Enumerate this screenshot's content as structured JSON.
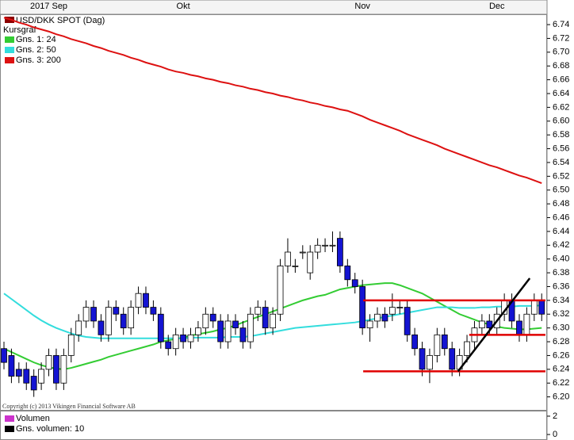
{
  "chart_data": [
    {
      "type": "candlestick",
      "title": "USD/DKK SPOT (Dag)",
      "color": "#8b0000",
      "subtitle": "Kursgraf",
      "footnote": "Copyright (c) 2013 Vikingen Financial Software AB",
      "categories": [
        null,
        null,
        null,
        null,
        null,
        null,
        "2017 Sep",
        null,
        null,
        null,
        null,
        null,
        null,
        null,
        null,
        null,
        null,
        null,
        null,
        null,
        null,
        null,
        null,
        null,
        "Okt",
        null,
        null,
        null,
        null,
        null,
        null,
        null,
        null,
        null,
        null,
        null,
        null,
        null,
        null,
        null,
        null,
        null,
        null,
        null,
        null,
        null,
        null,
        null,
        "Nov",
        null,
        null,
        null,
        null,
        null,
        null,
        null,
        null,
        null,
        null,
        null,
        null,
        null,
        null,
        null,
        null,
        null,
        "Dec",
        null,
        null,
        null,
        null,
        null,
        null
      ],
      "open": [
        6.27,
        6.26,
        6.24,
        6.24,
        6.23,
        6.22,
        6.24,
        6.26,
        6.22,
        6.26,
        6.29,
        6.31,
        6.33,
        6.31,
        6.29,
        6.33,
        6.32,
        6.3,
        6.33,
        6.35,
        6.33,
        6.32,
        6.28,
        6.27,
        6.29,
        6.28,
        6.29,
        6.3,
        6.32,
        6.31,
        6.28,
        6.31,
        6.3,
        6.28,
        6.32,
        6.33,
        6.3,
        6.32,
        6.39,
        6.39,
        6.41,
        6.38,
        6.41,
        6.42,
        6.42,
        6.43,
        6.39,
        6.37,
        6.36,
        6.3,
        6.31,
        6.32,
        6.32,
        6.33,
        6.33,
        6.29,
        6.27,
        6.24,
        6.26,
        6.29,
        6.27,
        6.24,
        6.26,
        6.28,
        6.3,
        6.31,
        6.3,
        6.32,
        6.34,
        6.31,
        6.29,
        6.32,
        6.34
      ],
      "high": [
        6.28,
        6.27,
        6.25,
        6.25,
        6.24,
        6.25,
        6.27,
        6.27,
        6.27,
        6.3,
        6.32,
        6.34,
        6.34,
        6.32,
        6.34,
        6.34,
        6.33,
        6.34,
        6.36,
        6.36,
        6.34,
        6.33,
        6.29,
        6.3,
        6.3,
        6.3,
        6.31,
        6.33,
        6.33,
        6.32,
        6.32,
        6.32,
        6.31,
        6.33,
        6.34,
        6.34,
        6.33,
        6.4,
        6.43,
        6.4,
        6.42,
        6.42,
        6.43,
        6.43,
        6.44,
        6.44,
        6.4,
        6.38,
        6.37,
        6.32,
        6.33,
        6.33,
        6.35,
        6.34,
        6.34,
        6.3,
        6.28,
        6.27,
        6.3,
        6.3,
        6.28,
        6.27,
        6.29,
        6.31,
        6.32,
        6.32,
        6.33,
        6.35,
        6.35,
        6.32,
        6.33,
        6.35,
        6.35
      ],
      "low": [
        6.24,
        6.22,
        6.22,
        6.21,
        6.2,
        6.21,
        6.23,
        6.21,
        6.21,
        6.25,
        6.28,
        6.3,
        6.3,
        6.28,
        6.28,
        6.31,
        6.29,
        6.29,
        6.32,
        6.32,
        6.31,
        6.27,
        6.26,
        6.26,
        6.27,
        6.27,
        6.28,
        6.29,
        6.3,
        6.27,
        6.27,
        6.29,
        6.27,
        6.27,
        6.31,
        6.29,
        6.29,
        6.31,
        6.38,
        6.38,
        6.4,
        6.37,
        6.4,
        6.41,
        6.41,
        6.38,
        6.36,
        6.35,
        6.29,
        6.28,
        6.3,
        6.3,
        6.31,
        6.32,
        6.28,
        6.26,
        6.23,
        6.22,
        6.25,
        6.26,
        6.23,
        6.23,
        6.25,
        6.27,
        6.29,
        6.29,
        6.29,
        6.31,
        6.3,
        6.28,
        6.28,
        6.31,
        6.31
      ],
      "close": [
        6.25,
        6.23,
        6.23,
        6.22,
        6.21,
        6.24,
        6.26,
        6.22,
        6.26,
        6.29,
        6.31,
        6.33,
        6.31,
        6.29,
        6.33,
        6.32,
        6.3,
        6.33,
        6.35,
        6.33,
        6.32,
        6.28,
        6.27,
        6.29,
        6.28,
        6.29,
        6.3,
        6.32,
        6.31,
        6.28,
        6.31,
        6.3,
        6.28,
        6.32,
        6.33,
        6.3,
        6.32,
        6.39,
        6.41,
        6.39,
        6.41,
        6.41,
        6.42,
        6.42,
        6.42,
        6.39,
        6.37,
        6.36,
        6.3,
        6.31,
        6.32,
        6.31,
        6.33,
        6.33,
        6.29,
        6.27,
        6.24,
        6.26,
        6.29,
        6.27,
        6.24,
        6.26,
        6.28,
        6.3,
        6.31,
        6.3,
        6.32,
        6.34,
        6.31,
        6.29,
        6.32,
        6.34,
        6.32
      ],
      "up_color": "#ffffff",
      "down_color": "#1414d2",
      "series": [
        {
          "name": "Gns. 1: 24",
          "color": "#33cc33",
          "values": [
            6.27,
            6.265,
            6.26,
            6.255,
            6.25,
            6.246,
            6.243,
            6.241,
            6.24,
            6.242,
            6.245,
            6.248,
            6.251,
            6.254,
            6.258,
            6.261,
            6.264,
            6.267,
            6.27,
            6.273,
            6.276,
            6.28,
            6.282,
            6.284,
            6.286,
            6.289,
            6.291,
            6.293,
            6.295,
            6.298,
            6.3,
            6.304,
            6.308,
            6.312,
            6.316,
            6.32,
            6.324,
            6.328,
            6.332,
            6.336,
            6.34,
            6.343,
            6.346,
            6.348,
            6.352,
            6.356,
            6.358,
            6.36,
            6.362,
            6.363,
            6.364,
            6.365,
            6.365,
            6.362,
            6.358,
            6.354,
            6.35,
            6.344,
            6.338,
            6.332,
            6.326,
            6.32,
            6.316,
            6.312,
            6.308,
            6.305,
            6.302,
            6.3,
            6.299,
            6.298,
            6.298,
            6.299,
            6.3
          ]
        },
        {
          "name": "Gns. 2: 50",
          "color": "#33dddd",
          "values": [
            6.35,
            6.342,
            6.334,
            6.326,
            6.318,
            6.311,
            6.305,
            6.3,
            6.296,
            6.292,
            6.289,
            6.287,
            6.286,
            6.285,
            6.285,
            6.285,
            6.285,
            6.285,
            6.285,
            6.285,
            6.285,
            6.285,
            6.285,
            6.285,
            6.285,
            6.286,
            6.286,
            6.286,
            6.286,
            6.286,
            6.287,
            6.287,
            6.287,
            6.288,
            6.29,
            6.292,
            6.294,
            6.296,
            6.298,
            6.3,
            6.301,
            6.302,
            6.303,
            6.304,
            6.305,
            6.306,
            6.307,
            6.308,
            6.31,
            6.312,
            6.314,
            6.316,
            6.318,
            6.32,
            6.322,
            6.324,
            6.326,
            6.328,
            6.33,
            6.33,
            6.33,
            6.329,
            6.329,
            6.329,
            6.33,
            6.33,
            6.331,
            6.331,
            6.331,
            6.332,
            6.332,
            6.332,
            6.333
          ]
        },
        {
          "name": "Gns. 3: 200",
          "color": "#dd1111",
          "values": [
            6.75,
            6.747,
            6.743,
            6.74,
            6.736,
            6.733,
            6.73,
            6.726,
            6.723,
            6.719,
            6.716,
            6.713,
            6.709,
            6.706,
            6.702,
            6.699,
            6.696,
            6.692,
            6.689,
            6.685,
            6.682,
            6.679,
            6.675,
            6.672,
            6.67,
            6.667,
            6.665,
            6.662,
            6.66,
            6.657,
            6.655,
            6.652,
            6.65,
            6.647,
            6.645,
            6.642,
            6.64,
            6.637,
            6.635,
            6.632,
            6.63,
            6.627,
            6.625,
            6.622,
            6.62,
            6.617,
            6.615,
            6.611,
            6.607,
            6.602,
            6.598,
            6.594,
            6.59,
            6.586,
            6.581,
            6.577,
            6.573,
            6.569,
            6.565,
            6.56,
            6.556,
            6.552,
            6.548,
            6.544,
            6.54,
            6.536,
            6.533,
            6.529,
            6.525,
            6.521,
            6.518,
            6.514,
            6.51
          ]
        }
      ],
      "lines": [
        {
          "x": [
            48.1,
            72.5
          ],
          "y": [
            6.34,
            6.34
          ],
          "color": "#e00000"
        },
        {
          "x": [
            62.3,
            72.5
          ],
          "y": [
            6.29,
            6.29
          ],
          "color": "#e00000"
        },
        {
          "x": [
            48.1,
            72.5
          ],
          "y": [
            6.237,
            6.237
          ],
          "color": "#e00000"
        },
        {
          "x": [
            60.8,
            70.4
          ],
          "y": [
            6.237,
            6.372
          ],
          "color": "#000000"
        }
      ],
      "ylim": [
        6.18,
        6.755
      ],
      "yticks": [
        {
          "value": 6.2,
          "label": "6.20"
        },
        6.22,
        6.24,
        6.26,
        6.28,
        {
          "value": 6.3,
          "label": "6.30"
        },
        6.32,
        6.34,
        6.36,
        6.38,
        {
          "value": 6.4,
          "label": "6.40"
        },
        6.42,
        6.44,
        6.46,
        6.48,
        {
          "value": 6.5,
          "label": "6.50"
        },
        6.52,
        6.54,
        6.56,
        6.58,
        {
          "value": 6.6,
          "label": "6.60"
        },
        6.62,
        6.64,
        6.66,
        6.68,
        {
          "value": 6.7,
          "label": "6.70"
        },
        6.72,
        6.74
      ]
    },
    {
      "type": "volume",
      "series": [
        {
          "name": "Volumen",
          "color": "#cc33cc"
        },
        {
          "name": "Gns. volumen: 10",
          "color": "#000000"
        }
      ],
      "ylim": [
        -0.6,
        2.6
      ],
      "yticks": [
        0,
        2
      ]
    }
  ]
}
